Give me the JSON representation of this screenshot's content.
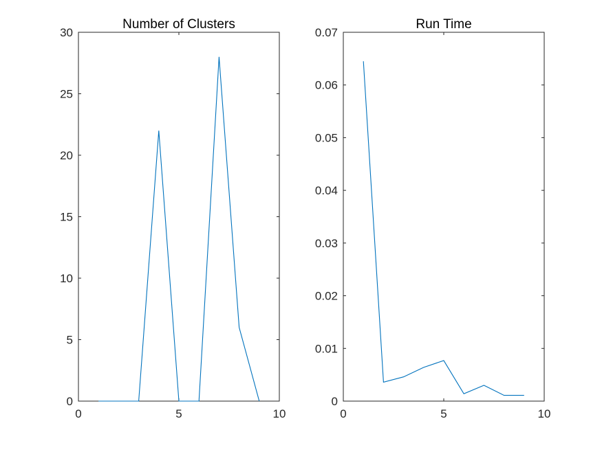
{
  "chart_data": [
    {
      "type": "line",
      "title": "Number of Clusters",
      "xlabel": "",
      "ylabel": "",
      "xlim": [
        0,
        10
      ],
      "ylim": [
        0,
        30
      ],
      "xticks": [
        0,
        5,
        10
      ],
      "yticks": [
        0,
        5,
        10,
        15,
        20,
        25,
        30
      ],
      "x": [
        1,
        2,
        3,
        4,
        5,
        6,
        7,
        8,
        9
      ],
      "series": [
        {
          "values": [
            0,
            0,
            0,
            22,
            0,
            0,
            28,
            6,
            0
          ],
          "color": "#0072BD"
        }
      ],
      "grid": false,
      "box": true
    },
    {
      "type": "line",
      "title": "Run Time",
      "xlabel": "",
      "ylabel": "",
      "xlim": [
        0,
        10
      ],
      "ylim": [
        0,
        0.07
      ],
      "xticks": [
        0,
        5,
        10
      ],
      "yticks": [
        0,
        0.01,
        0.02,
        0.03,
        0.04,
        0.05,
        0.06,
        0.07
      ],
      "x": [
        1,
        2,
        3,
        4,
        5,
        6,
        7,
        8,
        9
      ],
      "series": [
        {
          "values": [
            0.0645,
            0.0036,
            0.0046,
            0.0064,
            0.0077,
            0.0014,
            0.003,
            0.0011,
            0.0011
          ],
          "color": "#0072BD"
        }
      ],
      "grid": false,
      "box": true
    }
  ]
}
